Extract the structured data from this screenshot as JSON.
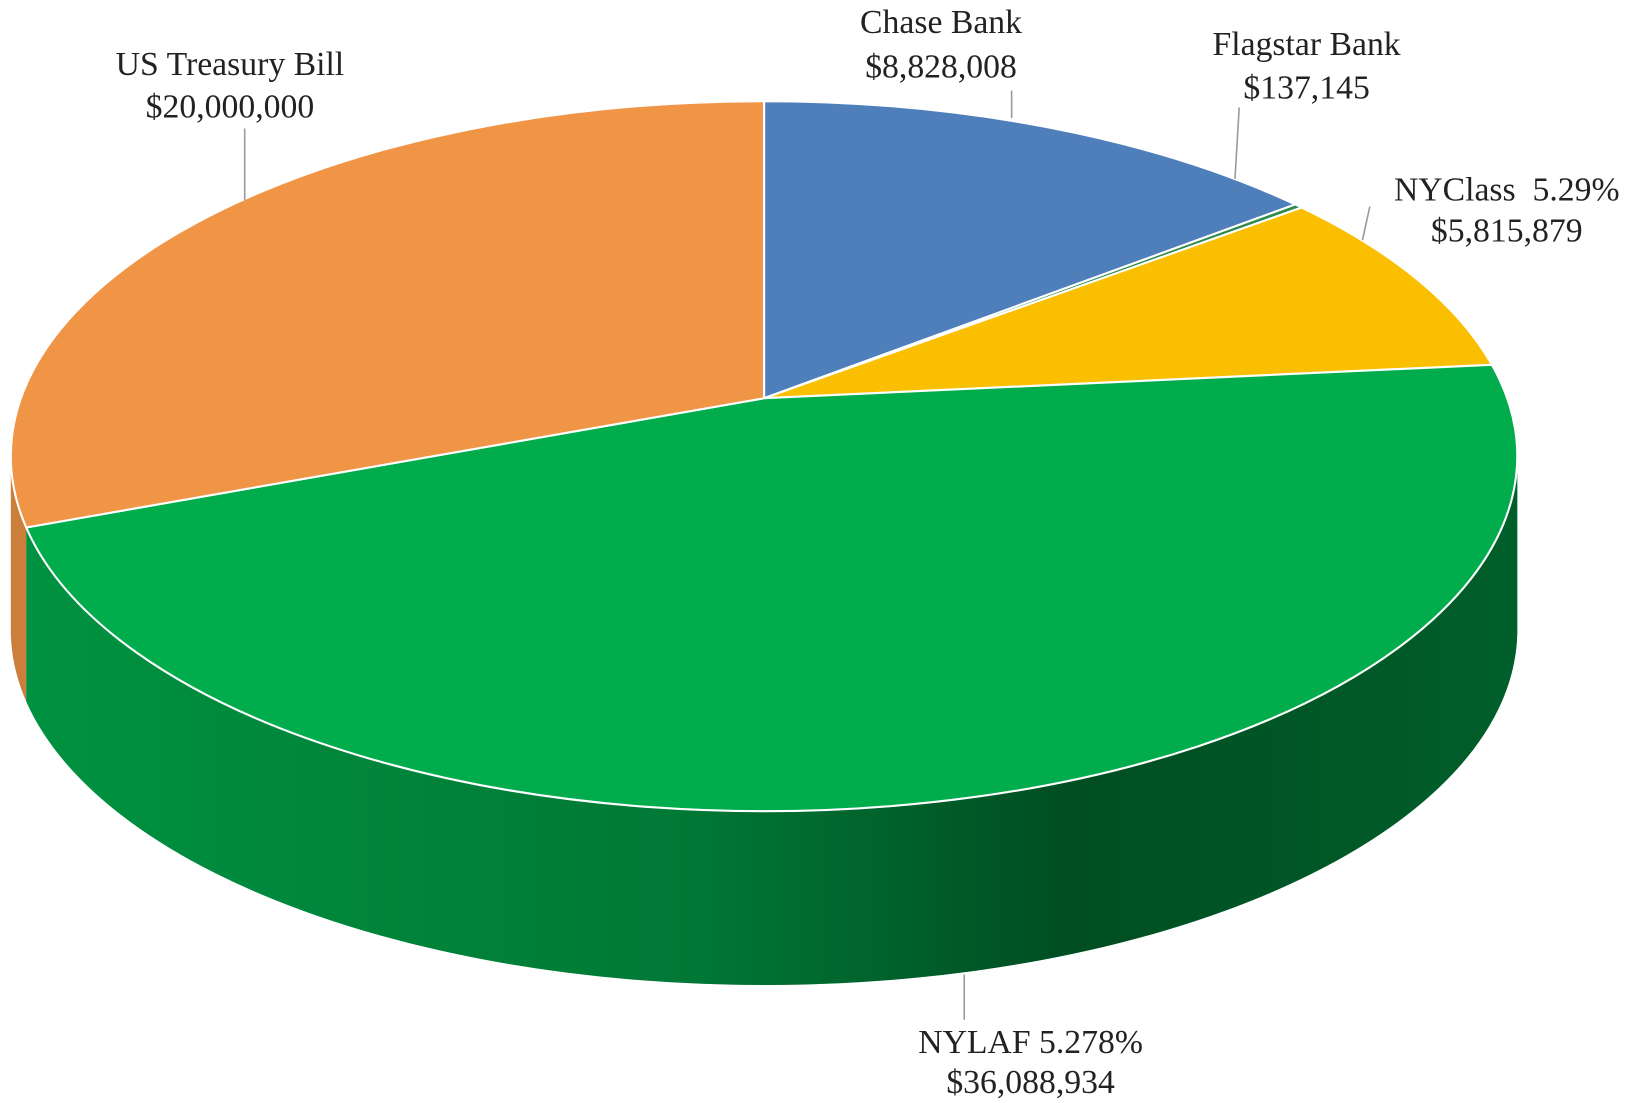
{
  "chart_data": {
    "type": "pie",
    "categories": [
      "Chase Bank",
      "Flagstar Bank",
      "NYClass  5.29%",
      "NYLAF 5.278%",
      "US Treasury Bill"
    ],
    "values": [
      8828008,
      137145,
      5815879,
      36088934,
      20000000
    ],
    "value_labels": [
      "$8,828,008",
      "$137,145",
      "$5,815,879",
      "$36,088,934",
      "$20,000,000"
    ],
    "colors": [
      "#4f7fbb",
      "#2e8a4a",
      "#f9bf00",
      "#00ac4c",
      "#f09446"
    ]
  }
}
